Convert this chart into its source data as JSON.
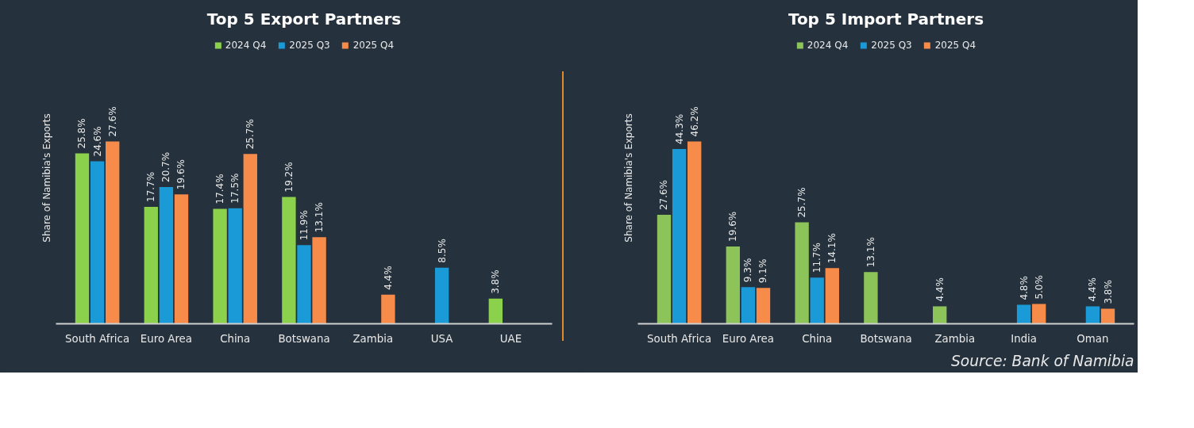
{
  "chart_data": [
    {
      "type": "bar",
      "title": "Top 5 Export Partners",
      "ylabel": "Share of Namibia's Exports",
      "legend": "top",
      "categories": [
        "South Africa",
        "Euro Area",
        "China",
        "Botswana",
        "Zambia",
        "USA",
        "UAE"
      ],
      "series": [
        {
          "name": "2024 Q4",
          "color": "#8bd14b",
          "values": [
            25.8,
            17.7,
            17.4,
            19.2,
            null,
            null,
            3.8
          ],
          "value_labels": [
            "25.8%",
            "17.7%",
            "17.4%",
            "19.2%",
            null,
            null,
            "3.8%"
          ]
        },
        {
          "name": "2025 Q3",
          "color": "#1a9ad6",
          "values": [
            24.6,
            20.7,
            17.5,
            11.9,
            null,
            8.5,
            null
          ],
          "value_labels": [
            "24.6%",
            "20.7%",
            "17.5%",
            "11.9%",
            null,
            "8.5%",
            null
          ]
        },
        {
          "name": "2025 Q4",
          "color": "#f78b4a",
          "values": [
            27.6,
            19.6,
            25.7,
            13.1,
            4.4,
            null,
            null
          ],
          "value_labels": [
            "27.6%",
            "19.6%",
            "25.7%",
            "13.1%",
            "4.4%",
            null,
            null
          ]
        }
      ]
    },
    {
      "type": "bar",
      "title": "Top 5 Import Partners",
      "ylabel": "Share of Namibia's Exports",
      "legend": "top",
      "categories": [
        "South Africa",
        "Euro Area",
        "China",
        "Botswana",
        "Zambia",
        "India",
        "Oman"
      ],
      "series": [
        {
          "name": "2024 Q4",
          "color": "#8dc45a",
          "values": [
            27.6,
            19.6,
            25.7,
            13.1,
            4.4,
            null,
            null
          ],
          "value_labels": [
            "27.6%",
            "19.6%",
            "25.7%",
            "13.1%",
            "4.4%",
            null,
            null
          ]
        },
        {
          "name": "2025 Q3",
          "color": "#1a9ad6",
          "values": [
            44.3,
            9.3,
            11.7,
            null,
            null,
            4.8,
            4.4
          ],
          "value_labels": [
            "44.3%",
            "9.3%",
            "11.7%",
            null,
            null,
            "4.8%",
            "4.4%"
          ]
        },
        {
          "name": "2025 Q4",
          "color": "#f78b4a",
          "values": [
            46.2,
            9.1,
            14.1,
            null,
            null,
            5.0,
            3.8
          ],
          "value_labels": [
            "46.2%",
            "9.1%",
            "14.1%",
            null,
            null,
            "5.0%",
            "3.8%"
          ]
        }
      ],
      "annotations": [
        "Source: Bank of Namibia"
      ]
    }
  ]
}
